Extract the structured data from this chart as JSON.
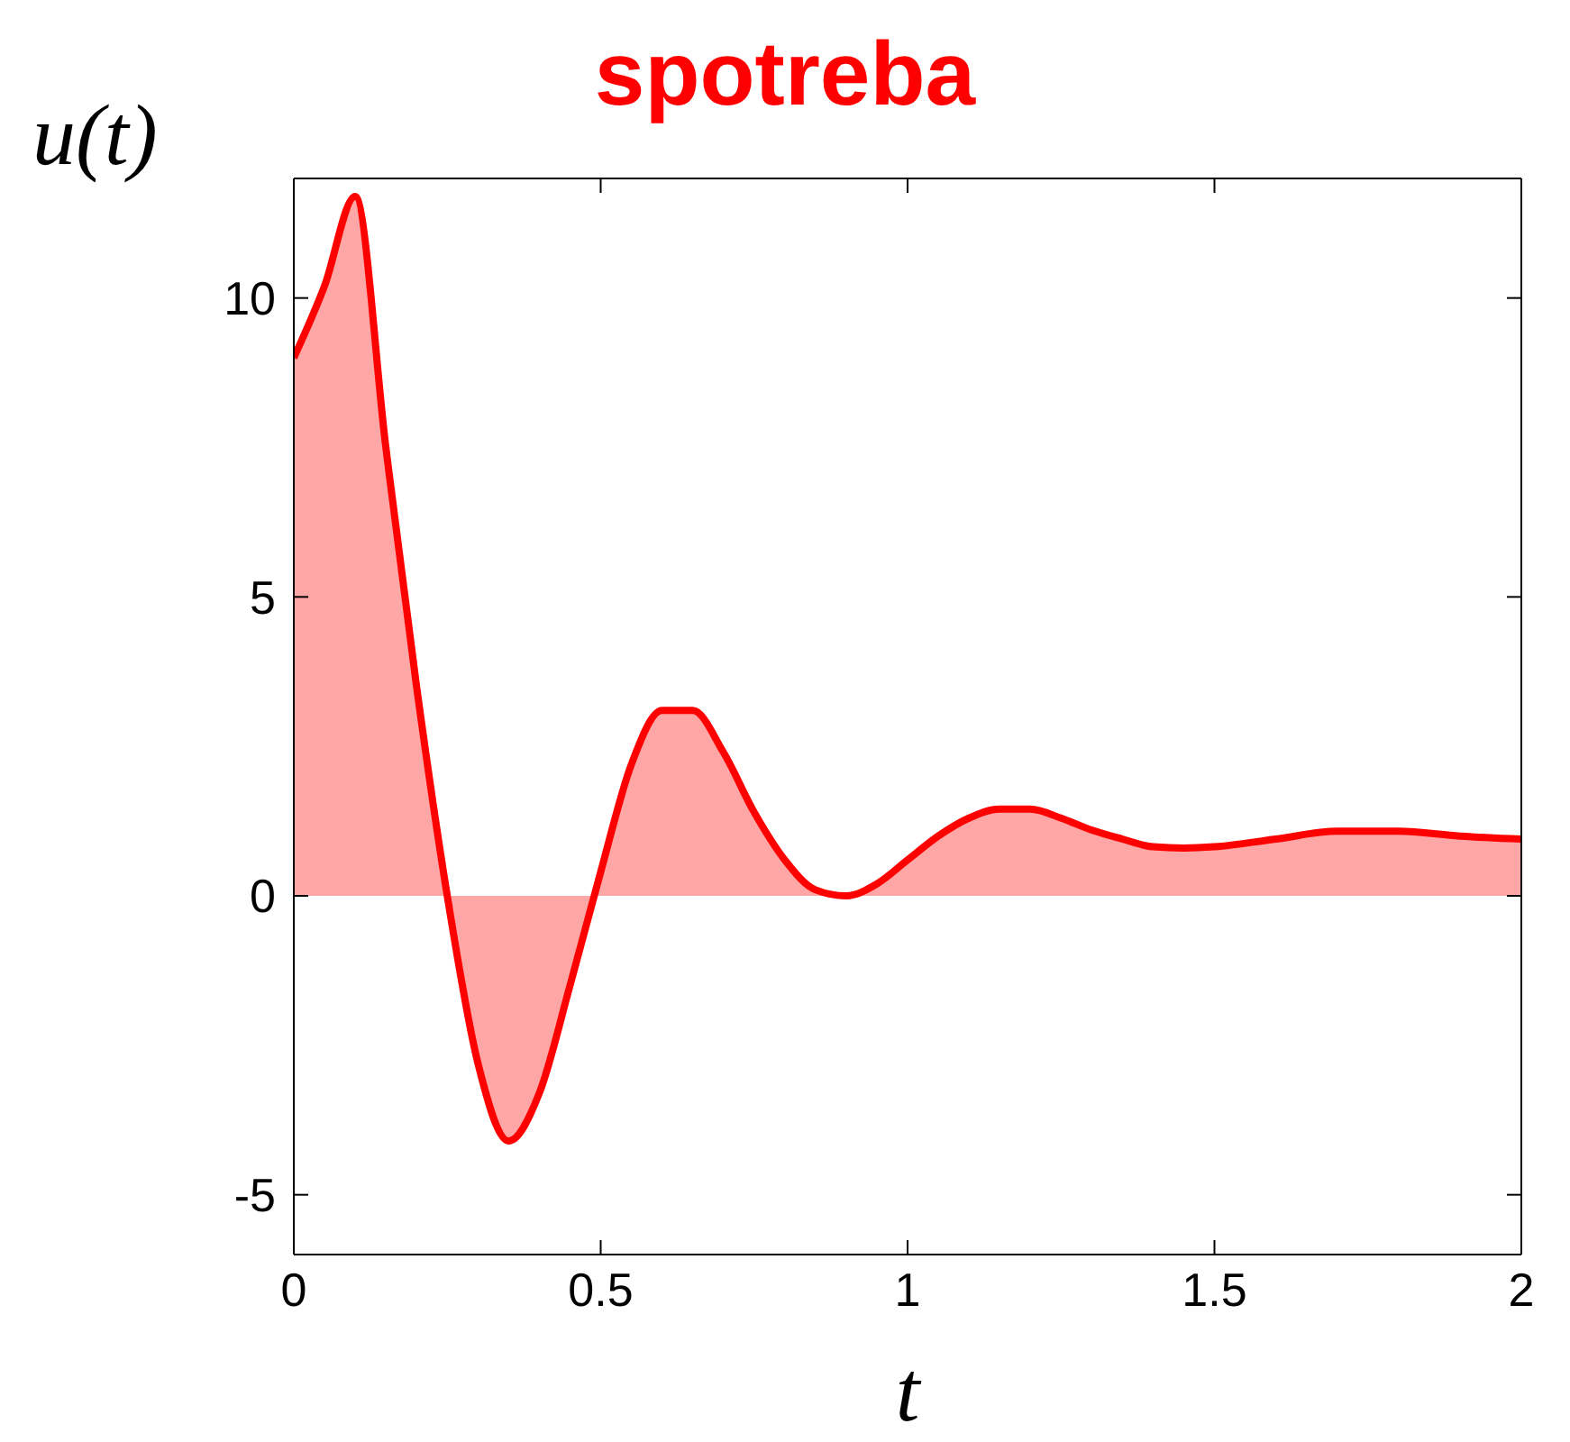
{
  "chart_data": {
    "type": "area",
    "title": "spotreba",
    "xlabel": "t",
    "ylabel": "u(t)",
    "x": [
      0,
      0.05,
      0.1,
      0.15,
      0.2,
      0.25,
      0.3,
      0.35,
      0.4,
      0.45,
      0.5,
      0.55,
      0.6,
      0.65,
      0.7,
      0.75,
      0.8,
      0.85,
      0.9,
      0.95,
      1,
      1.05,
      1.1,
      1.15,
      1.2,
      1.25,
      1.3,
      1.35,
      1.4,
      1.45,
      1.5,
      1.6,
      1.7,
      1.8,
      1.9,
      2
    ],
    "series": [
      {
        "color": "#ff0000",
        "values": [
          9,
          10.2,
          11.7,
          7.5,
          3.5,
          0,
          -2.8,
          -4.1,
          -3.3,
          -1.5,
          0.4,
          2.2,
          3.1,
          3.1,
          2.4,
          1.4,
          0.6,
          0.1,
          0,
          0.2,
          0.6,
          1,
          1.3,
          1.45,
          1.45,
          1.3,
          1.1,
          0.95,
          0.82,
          0.8,
          0.82,
          0.95,
          1.08,
          1.08,
          1,
          0.95
        ]
      }
    ],
    "xlim": [
      0,
      2
    ],
    "xticks": [
      0,
      0.5,
      1,
      1.5,
      2
    ],
    "ylim": [
      -6,
      12
    ],
    "yticks": [
      -5,
      0,
      5,
      10
    ],
    "grid": false
  }
}
